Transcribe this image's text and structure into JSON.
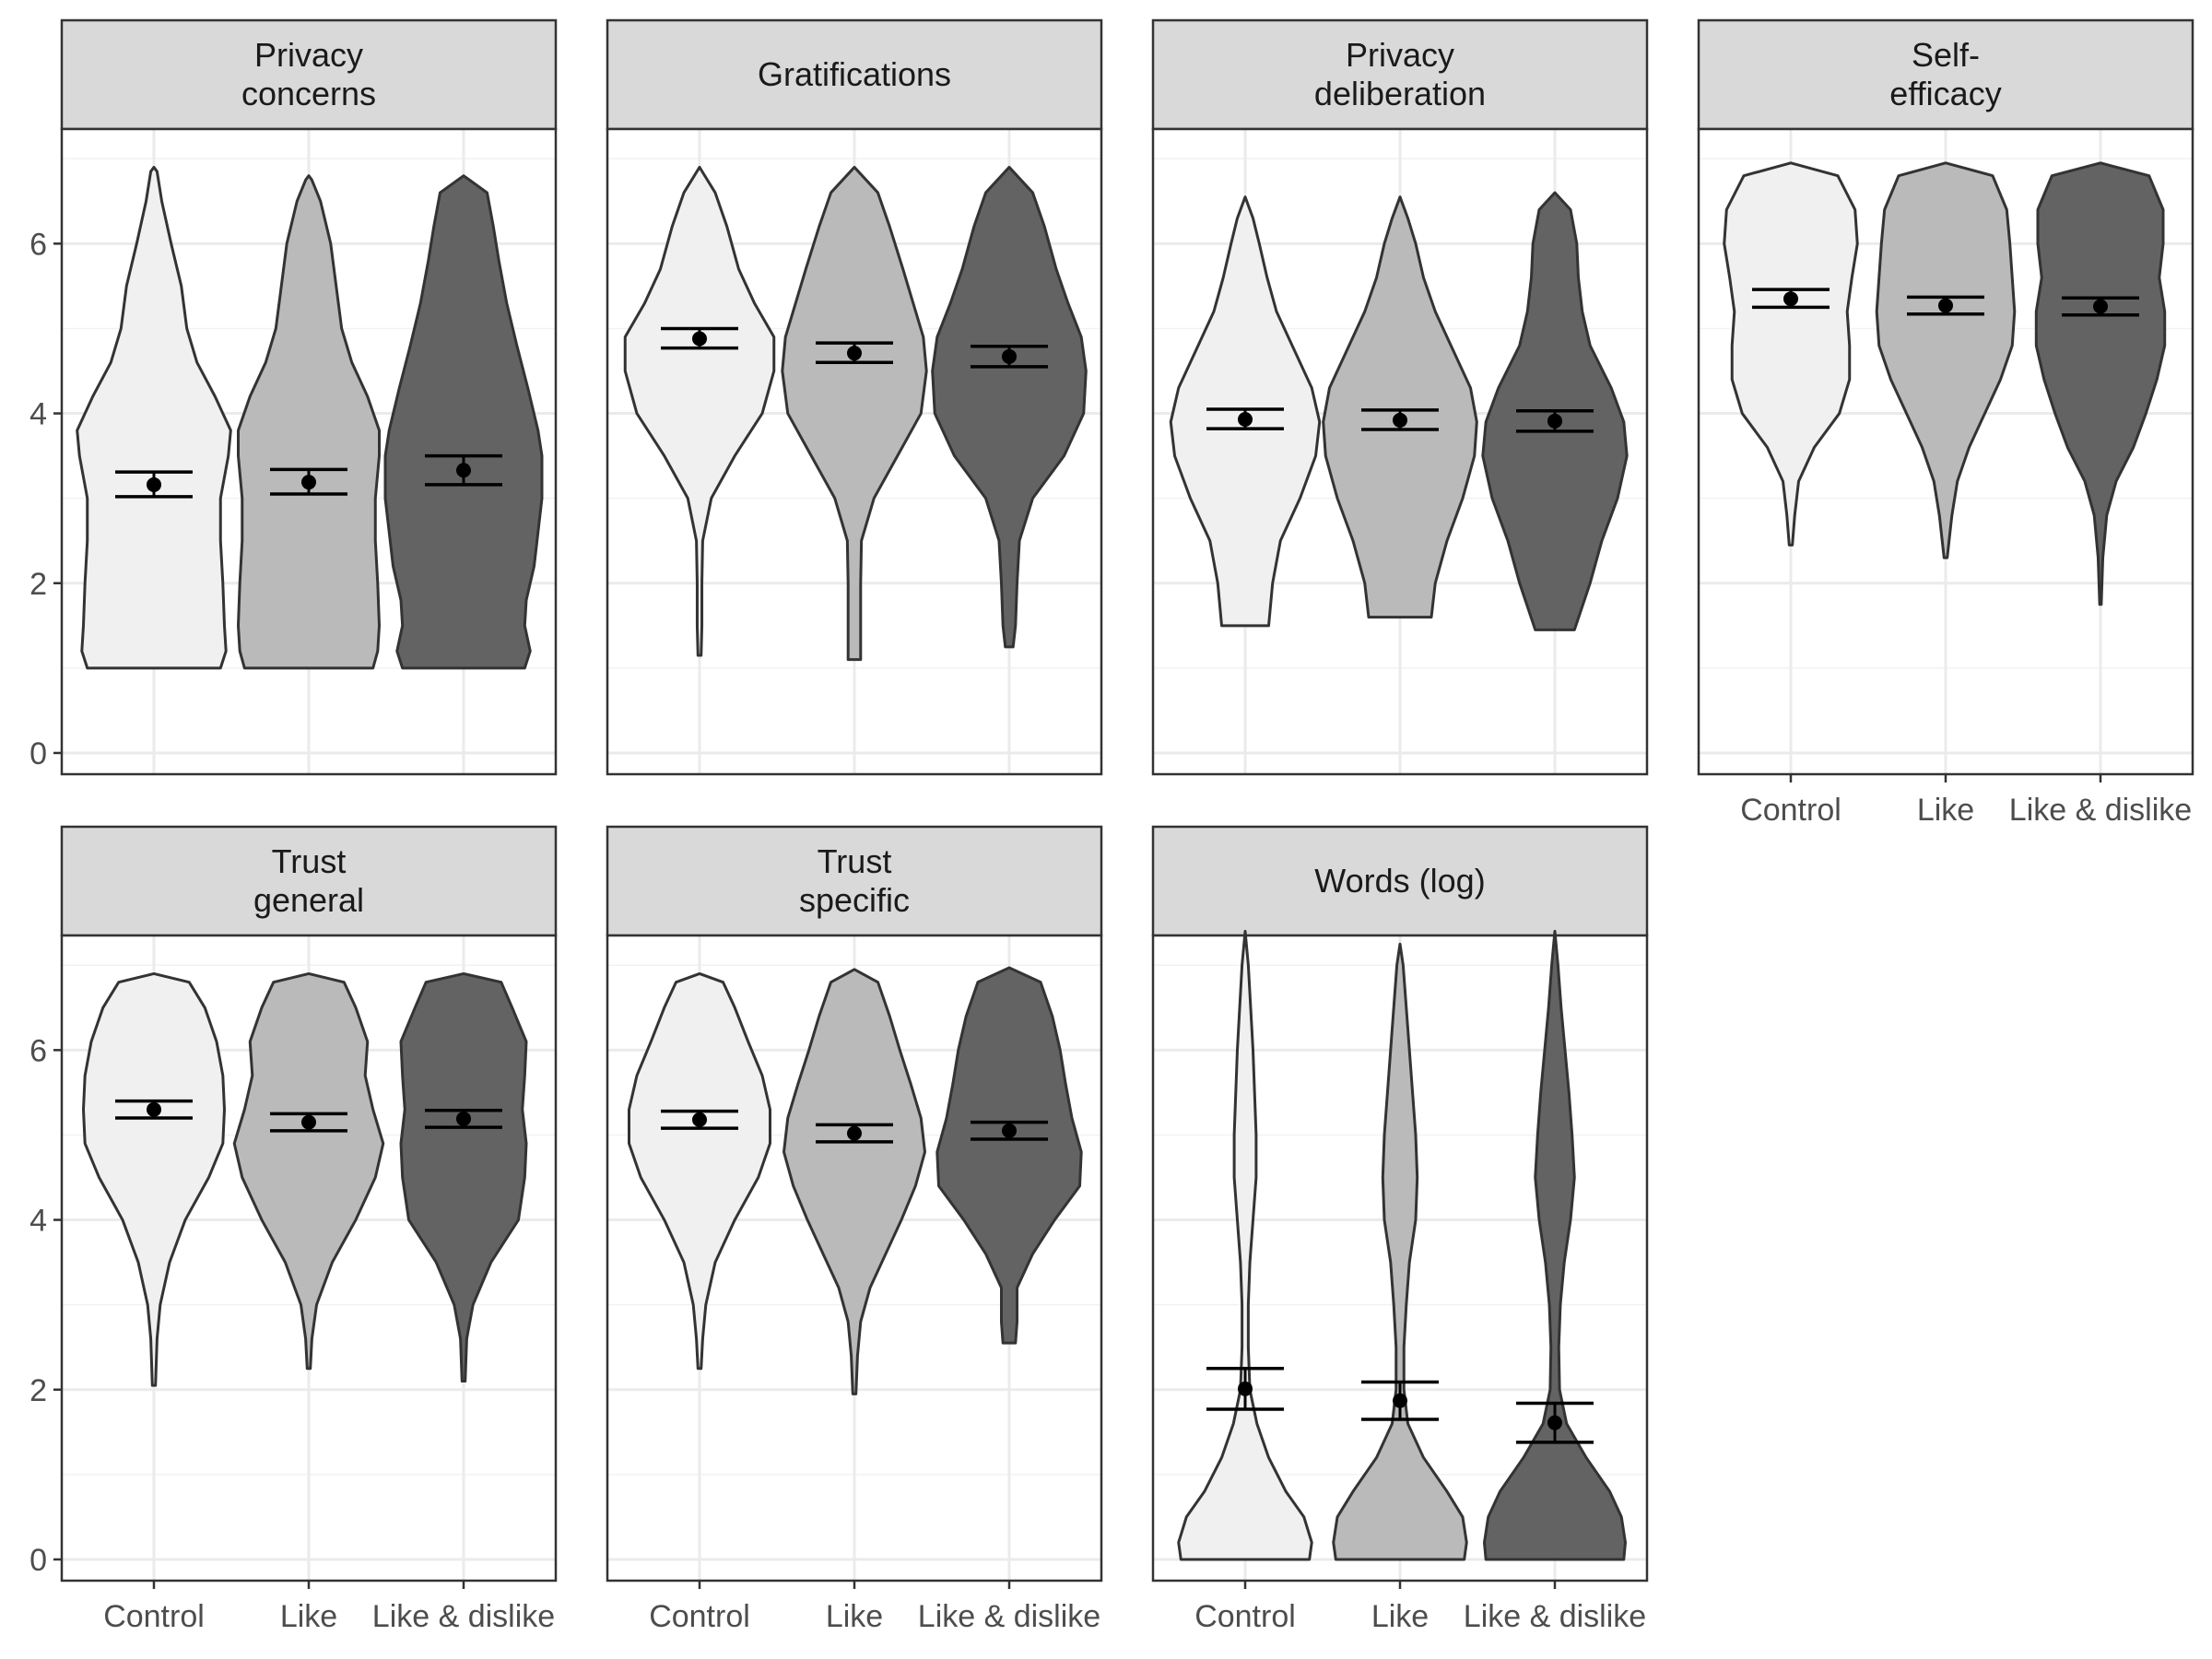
{
  "chart_data": {
    "type": "violin",
    "title": "",
    "xlabel": "",
    "ylabel": "",
    "categories": [
      "Control",
      "Like",
      "Like & dislike"
    ],
    "category_fills": [
      "#f0f0f0",
      "#bababa",
      "#636363"
    ],
    "ylim": [
      -0.25,
      7.35
    ],
    "yticks": [
      0,
      2,
      4,
      6
    ],
    "grid": true,
    "legend": "none",
    "facets": [
      {
        "label": [
          "Privacy",
          "concerns"
        ],
        "groups": [
          {
            "category": "Control",
            "mean": 3.16,
            "ci": [
              3.02,
              3.31
            ],
            "density": {
              "y": [
                1.0,
                1.2,
                1.5,
                2.0,
                2.5,
                3.0,
                3.5,
                3.8,
                4.2,
                4.6,
                5.0,
                5.5,
                6.0,
                6.5,
                6.85,
                6.9
              ],
              "w": [
                0.85,
                0.92,
                0.9,
                0.88,
                0.85,
                0.85,
                0.95,
                0.98,
                0.78,
                0.55,
                0.42,
                0.35,
                0.22,
                0.1,
                0.04,
                0.0
              ]
            }
          },
          {
            "category": "Like",
            "mean": 3.19,
            "ci": [
              3.05,
              3.34
            ],
            "density": {
              "y": [
                1.0,
                1.2,
                1.5,
                2.0,
                2.5,
                3.0,
                3.5,
                3.8,
                4.2,
                4.6,
                5.0,
                5.5,
                6.0,
                6.5,
                6.75,
                6.8
              ],
              "w": [
                0.82,
                0.88,
                0.9,
                0.88,
                0.85,
                0.85,
                0.9,
                0.9,
                0.75,
                0.55,
                0.42,
                0.35,
                0.28,
                0.15,
                0.04,
                0.0
              ]
            }
          },
          {
            "category": "Like & dislike",
            "mean": 3.33,
            "ci": [
              3.16,
              3.5
            ],
            "density": {
              "y": [
                1.0,
                1.2,
                1.5,
                1.8,
                2.2,
                2.6,
                3.0,
                3.5,
                3.8,
                4.3,
                4.8,
                5.3,
                5.8,
                6.2,
                6.6,
                6.8
              ],
              "w": [
                0.78,
                0.85,
                0.78,
                0.8,
                0.9,
                0.95,
                1.0,
                1.0,
                0.95,
                0.82,
                0.68,
                0.55,
                0.45,
                0.38,
                0.3,
                0.0
              ]
            }
          }
        ]
      },
      {
        "label": [
          "Gratifications"
        ],
        "groups": [
          {
            "category": "Control",
            "mean": 4.88,
            "ci": [
              4.77,
              5.0
            ],
            "density": {
              "y": [
                1.15,
                1.5,
                2.0,
                2.5,
                3.0,
                3.5,
                4.0,
                4.5,
                4.9,
                5.3,
                5.7,
                6.2,
                6.6,
                6.9
              ],
              "w": [
                0.02,
                0.03,
                0.03,
                0.04,
                0.15,
                0.45,
                0.8,
                0.95,
                0.95,
                0.7,
                0.5,
                0.35,
                0.2,
                0.0
              ]
            }
          },
          {
            "category": "Like",
            "mean": 4.71,
            "ci": [
              4.6,
              4.83
            ],
            "density": {
              "y": [
                1.1,
                1.5,
                2.0,
                2.5,
                3.0,
                3.5,
                4.0,
                4.5,
                4.9,
                5.3,
                5.7,
                6.2,
                6.6,
                6.9
              ],
              "w": [
                0.08,
                0.08,
                0.08,
                0.09,
                0.25,
                0.55,
                0.85,
                0.92,
                0.88,
                0.75,
                0.62,
                0.45,
                0.3,
                0.0
              ]
            }
          },
          {
            "category": "Like & dislike",
            "mean": 4.67,
            "ci": [
              4.55,
              4.79
            ],
            "density": {
              "y": [
                1.25,
                1.5,
                2.0,
                2.5,
                3.0,
                3.5,
                4.0,
                4.5,
                4.9,
                5.3,
                5.7,
                6.2,
                6.6,
                6.9
              ],
              "w": [
                0.05,
                0.08,
                0.1,
                0.13,
                0.3,
                0.7,
                0.95,
                0.98,
                0.92,
                0.75,
                0.6,
                0.45,
                0.3,
                0.0
              ]
            }
          }
        ]
      },
      {
        "label": [
          "Privacy",
          "deliberation"
        ],
        "groups": [
          {
            "category": "Control",
            "mean": 3.93,
            "ci": [
              3.82,
              4.05
            ],
            "density": {
              "y": [
                1.5,
                2.0,
                2.5,
                3.0,
                3.5,
                3.9,
                4.3,
                4.8,
                5.2,
                5.6,
                6.0,
                6.3,
                6.55
              ],
              "w": [
                0.3,
                0.35,
                0.45,
                0.7,
                0.9,
                0.95,
                0.85,
                0.6,
                0.4,
                0.28,
                0.18,
                0.1,
                0.0
              ]
            }
          },
          {
            "category": "Like",
            "mean": 3.92,
            "ci": [
              3.81,
              4.04
            ],
            "density": {
              "y": [
                1.6,
                2.0,
                2.5,
                3.0,
                3.5,
                3.9,
                4.3,
                4.8,
                5.2,
                5.6,
                6.0,
                6.3,
                6.55
              ],
              "w": [
                0.4,
                0.45,
                0.6,
                0.8,
                0.95,
                0.98,
                0.9,
                0.65,
                0.45,
                0.3,
                0.2,
                0.1,
                0.0
              ]
            }
          },
          {
            "category": "Like & dislike",
            "mean": 3.91,
            "ci": [
              3.79,
              4.03
            ],
            "density": {
              "y": [
                1.45,
                2.0,
                2.5,
                3.0,
                3.5,
                3.9,
                4.3,
                4.8,
                5.2,
                5.6,
                6.0,
                6.4,
                6.6
              ],
              "w": [
                0.25,
                0.45,
                0.6,
                0.8,
                0.92,
                0.88,
                0.72,
                0.45,
                0.35,
                0.3,
                0.28,
                0.2,
                0.0
              ]
            }
          }
        ]
      },
      {
        "label": [
          "Self-",
          "efficacy"
        ],
        "groups": [
          {
            "category": "Control",
            "mean": 5.35,
            "ci": [
              5.25,
              5.46
            ],
            "density": {
              "y": [
                2.45,
                2.8,
                3.2,
                3.6,
                4.0,
                4.4,
                4.8,
                5.2,
                5.6,
                6.0,
                6.4,
                6.8,
                6.95
              ],
              "w": [
                0.02,
                0.05,
                0.1,
                0.3,
                0.62,
                0.75,
                0.75,
                0.72,
                0.78,
                0.85,
                0.82,
                0.6,
                0.0
              ]
            }
          },
          {
            "category": "Like",
            "mean": 5.27,
            "ci": [
              5.17,
              5.37
            ],
            "density": {
              "y": [
                2.3,
                2.8,
                3.2,
                3.6,
                4.0,
                4.4,
                4.8,
                5.2,
                5.6,
                6.0,
                6.4,
                6.8,
                6.95
              ],
              "w": [
                0.02,
                0.08,
                0.15,
                0.3,
                0.5,
                0.7,
                0.85,
                0.88,
                0.85,
                0.82,
                0.78,
                0.6,
                0.0
              ]
            }
          },
          {
            "category": "Like & dislike",
            "mean": 5.26,
            "ci": [
              5.16,
              5.36
            ],
            "density": {
              "y": [
                1.75,
                2.3,
                2.8,
                3.2,
                3.6,
                4.0,
                4.4,
                4.8,
                5.2,
                5.6,
                6.0,
                6.4,
                6.8,
                6.95
              ],
              "w": [
                0.01,
                0.03,
                0.08,
                0.2,
                0.42,
                0.58,
                0.72,
                0.82,
                0.82,
                0.75,
                0.8,
                0.8,
                0.62,
                0.0
              ]
            }
          }
        ]
      },
      {
        "label": [
          "Trust",
          "general"
        ],
        "groups": [
          {
            "category": "Control",
            "mean": 5.3,
            "ci": [
              5.2,
              5.4
            ],
            "density": {
              "y": [
                2.05,
                2.6,
                3.0,
                3.5,
                4.0,
                4.5,
                4.9,
                5.3,
                5.7,
                6.1,
                6.5,
                6.8,
                6.9
              ],
              "w": [
                0.02,
                0.04,
                0.08,
                0.2,
                0.4,
                0.7,
                0.88,
                0.9,
                0.88,
                0.8,
                0.65,
                0.45,
                0.0
              ]
            }
          },
          {
            "category": "Like",
            "mean": 5.15,
            "ci": [
              5.05,
              5.25
            ],
            "density": {
              "y": [
                2.25,
                2.6,
                3.0,
                3.5,
                4.0,
                4.5,
                4.9,
                5.3,
                5.7,
                6.1,
                6.5,
                6.8,
                6.9
              ],
              "w": [
                0.02,
                0.04,
                0.1,
                0.3,
                0.6,
                0.85,
                0.95,
                0.82,
                0.72,
                0.75,
                0.6,
                0.45,
                0.0
              ]
            }
          },
          {
            "category": "Like & dislike",
            "mean": 5.19,
            "ci": [
              5.09,
              5.29
            ],
            "density": {
              "y": [
                2.1,
                2.6,
                3.0,
                3.5,
                4.0,
                4.5,
                4.9,
                5.3,
                5.7,
                6.1,
                6.5,
                6.8,
                6.9
              ],
              "w": [
                0.02,
                0.04,
                0.12,
                0.35,
                0.7,
                0.78,
                0.8,
                0.75,
                0.78,
                0.8,
                0.62,
                0.48,
                0.0
              ]
            }
          }
        ]
      },
      {
        "label": [
          "Trust",
          "specific"
        ],
        "groups": [
          {
            "category": "Control",
            "mean": 5.18,
            "ci": [
              5.08,
              5.28
            ],
            "density": {
              "y": [
                2.25,
                2.6,
                3.0,
                3.5,
                4.0,
                4.5,
                4.9,
                5.3,
                5.7,
                6.1,
                6.5,
                6.8,
                6.9
              ],
              "w": [
                0.02,
                0.04,
                0.08,
                0.2,
                0.45,
                0.75,
                0.9,
                0.9,
                0.8,
                0.62,
                0.45,
                0.3,
                0.0
              ]
            }
          },
          {
            "category": "Like",
            "mean": 5.02,
            "ci": [
              4.92,
              5.12
            ],
            "density": {
              "y": [
                1.95,
                2.4,
                2.8,
                3.2,
                3.6,
                4.0,
                4.4,
                4.8,
                5.2,
                5.6,
                6.0,
                6.4,
                6.8,
                6.95
              ],
              "w": [
                0.02,
                0.04,
                0.08,
                0.2,
                0.4,
                0.6,
                0.78,
                0.9,
                0.85,
                0.72,
                0.58,
                0.45,
                0.3,
                0.0
              ]
            }
          },
          {
            "category": "Like & dislike",
            "mean": 5.05,
            "ci": [
              4.95,
              5.15
            ],
            "density": {
              "y": [
                2.55,
                2.8,
                3.2,
                3.6,
                4.0,
                4.4,
                4.8,
                5.2,
                5.6,
                6.0,
                6.4,
                6.8,
                6.97
              ],
              "w": [
                0.08,
                0.1,
                0.1,
                0.3,
                0.58,
                0.9,
                0.92,
                0.8,
                0.72,
                0.65,
                0.55,
                0.4,
                0.0
              ]
            }
          }
        ]
      },
      {
        "label": [
          "Words (log)"
        ],
        "groups": [
          {
            "category": "Control",
            "mean": 2.01,
            "ci": [
              1.77,
              2.25
            ],
            "density": {
              "y": [
                0.0,
                0.2,
                0.5,
                0.8,
                1.2,
                1.6,
                2.0,
                2.5,
                3.0,
                3.5,
                4.0,
                4.5,
                5.0,
                5.5,
                6.0,
                6.5,
                7.0,
                7.4
              ],
              "w": [
                0.82,
                0.85,
                0.75,
                0.52,
                0.3,
                0.15,
                0.06,
                0.04,
                0.04,
                0.06,
                0.1,
                0.14,
                0.14,
                0.12,
                0.1,
                0.07,
                0.04,
                0.0
              ]
            }
          },
          {
            "category": "Like",
            "mean": 1.87,
            "ci": [
              1.65,
              2.09
            ],
            "density": {
              "y": [
                0.0,
                0.2,
                0.5,
                0.8,
                1.2,
                1.6,
                2.0,
                2.5,
                3.0,
                3.5,
                4.0,
                4.5,
                5.0,
                5.5,
                6.0,
                6.5,
                7.0,
                7.25
              ],
              "w": [
                0.82,
                0.85,
                0.8,
                0.6,
                0.3,
                0.1,
                0.05,
                0.05,
                0.08,
                0.12,
                0.2,
                0.22,
                0.2,
                0.16,
                0.12,
                0.08,
                0.04,
                0.0
              ]
            }
          },
          {
            "category": "Like & dislike",
            "mean": 1.61,
            "ci": [
              1.38,
              1.84
            ],
            "density": {
              "y": [
                0.0,
                0.2,
                0.5,
                0.8,
                1.2,
                1.6,
                2.0,
                2.5,
                3.0,
                3.5,
                4.0,
                4.5,
                5.0,
                5.5,
                6.0,
                6.5,
                7.0,
                7.4
              ],
              "w": [
                0.88,
                0.9,
                0.85,
                0.7,
                0.4,
                0.15,
                0.06,
                0.05,
                0.07,
                0.12,
                0.2,
                0.25,
                0.22,
                0.18,
                0.13,
                0.08,
                0.04,
                0.0
              ]
            }
          }
        ]
      }
    ]
  }
}
